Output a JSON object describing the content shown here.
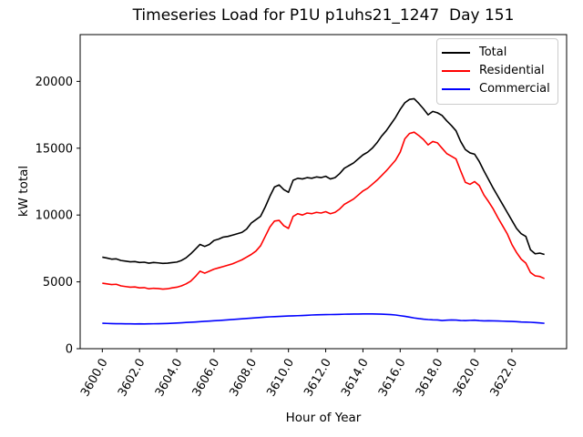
{
  "chart_data": {
    "type": "line",
    "title": "Timeseries Load for P1U p1uhs21_1247  Day 151",
    "xlabel": "Hour of Year",
    "ylabel": "kW total",
    "xlim": [
      3598.81,
      3624.94
    ],
    "ylim": [
      0,
      23500
    ],
    "grid": false,
    "legend_position": "upper right",
    "xtick_values": [
      3600,
      3602,
      3604,
      3606,
      3608,
      3610,
      3612,
      3614,
      3616,
      3618,
      3620,
      3622
    ],
    "xtick_labels": [
      "3600.0",
      "3602.0",
      "3604.0",
      "3606.0",
      "3608.0",
      "3610.0",
      "3612.0",
      "3614.0",
      "3616.0",
      "3618.0",
      "3620.0",
      "3622.0"
    ],
    "ytick_values": [
      0,
      5000,
      10000,
      15000,
      20000
    ],
    "ytick_labels": [
      "0",
      "5000",
      "10000",
      "15000",
      "20000"
    ],
    "x": [
      3600.0,
      3600.25,
      3600.5,
      3600.75,
      3601.0,
      3601.25,
      3601.5,
      3601.75,
      3602.0,
      3602.25,
      3602.5,
      3602.75,
      3603.0,
      3603.25,
      3603.5,
      3603.75,
      3604.0,
      3604.25,
      3604.5,
      3604.75,
      3605.0,
      3605.25,
      3605.5,
      3605.75,
      3606.0,
      3606.25,
      3606.5,
      3606.75,
      3607.0,
      3607.25,
      3607.5,
      3607.75,
      3608.0,
      3608.25,
      3608.5,
      3608.75,
      3609.0,
      3609.25,
      3609.5,
      3609.75,
      3610.0,
      3610.25,
      3610.5,
      3610.75,
      3611.0,
      3611.25,
      3611.5,
      3611.75,
      3612.0,
      3612.25,
      3612.5,
      3612.75,
      3613.0,
      3613.25,
      3613.5,
      3613.75,
      3614.0,
      3614.25,
      3614.5,
      3614.75,
      3615.0,
      3615.25,
      3615.5,
      3615.75,
      3616.0,
      3616.25,
      3616.5,
      3616.75,
      3617.0,
      3617.25,
      3617.5,
      3617.75,
      3618.0,
      3618.25,
      3618.5,
      3618.75,
      3619.0,
      3619.25,
      3619.5,
      3619.75,
      3620.0,
      3620.25,
      3620.5,
      3620.75,
      3621.0,
      3621.25,
      3621.5,
      3621.75,
      3622.0,
      3622.25,
      3622.5,
      3622.75,
      3623.0,
      3623.25,
      3623.5,
      3623.75
    ],
    "series": [
      {
        "name": "Total",
        "color": "#000000",
        "values": [
          6850,
          6780,
          6700,
          6720,
          6600,
          6550,
          6500,
          6520,
          6450,
          6470,
          6400,
          6450,
          6420,
          6380,
          6400,
          6440,
          6480,
          6600,
          6800,
          7100,
          7450,
          7800,
          7650,
          7800,
          8100,
          8200,
          8350,
          8400,
          8500,
          8600,
          8700,
          8950,
          9400,
          9650,
          9900,
          10600,
          11400,
          12100,
          12250,
          11900,
          11700,
          12600,
          12750,
          12700,
          12800,
          12750,
          12850,
          12800,
          12900,
          12700,
          12800,
          13100,
          13500,
          13700,
          13900,
          14200,
          14500,
          14700,
          15000,
          15400,
          15900,
          16300,
          16800,
          17300,
          17900,
          18400,
          18650,
          18700,
          18350,
          17950,
          17500,
          17750,
          17650,
          17450,
          17050,
          16700,
          16300,
          15500,
          14900,
          14650,
          14550,
          14000,
          13300,
          12650,
          12000,
          11400,
          10800,
          10200,
          9600,
          9000,
          8600,
          8400,
          7400,
          7100,
          7150,
          7050
        ]
      },
      {
        "name": "Residential",
        "color": "#ff0000",
        "values": [
          4900,
          4850,
          4800,
          4820,
          4700,
          4650,
          4600,
          4620,
          4550,
          4570,
          4480,
          4520,
          4500,
          4460,
          4480,
          4550,
          4600,
          4700,
          4850,
          5050,
          5400,
          5800,
          5650,
          5800,
          5950,
          6050,
          6150,
          6250,
          6350,
          6500,
          6650,
          6850,
          7050,
          7300,
          7700,
          8400,
          9100,
          9550,
          9600,
          9200,
          9000,
          9900,
          10100,
          10000,
          10150,
          10100,
          10200,
          10150,
          10250,
          10100,
          10200,
          10450,
          10800,
          11000,
          11200,
          11500,
          11800,
          12000,
          12300,
          12600,
          12950,
          13300,
          13700,
          14100,
          14700,
          15700,
          16100,
          16200,
          15950,
          15650,
          15250,
          15500,
          15400,
          15000,
          14600,
          14400,
          14200,
          13300,
          12450,
          12300,
          12500,
          12200,
          11500,
          11000,
          10450,
          9800,
          9200,
          8600,
          7800,
          7200,
          6700,
          6400,
          5700,
          5450,
          5400,
          5250
        ]
      },
      {
        "name": "Commercial",
        "color": "#0000ff",
        "values": [
          1900,
          1890,
          1880,
          1870,
          1870,
          1860,
          1860,
          1855,
          1860,
          1855,
          1860,
          1865,
          1870,
          1875,
          1885,
          1900,
          1920,
          1940,
          1960,
          1980,
          2000,
          2020,
          2045,
          2065,
          2090,
          2110,
          2135,
          2160,
          2185,
          2210,
          2235,
          2260,
          2285,
          2310,
          2340,
          2360,
          2385,
          2400,
          2415,
          2430,
          2445,
          2460,
          2470,
          2485,
          2500,
          2520,
          2535,
          2545,
          2550,
          2555,
          2560,
          2570,
          2580,
          2585,
          2590,
          2595,
          2600,
          2600,
          2600,
          2595,
          2585,
          2570,
          2550,
          2520,
          2470,
          2420,
          2360,
          2300,
          2250,
          2210,
          2180,
          2160,
          2150,
          2110,
          2130,
          2150,
          2140,
          2110,
          2100,
          2120,
          2130,
          2100,
          2080,
          2090,
          2085,
          2070,
          2060,
          2050,
          2040,
          2020,
          2000,
          1990,
          1975,
          1955,
          1930,
          1900
        ]
      }
    ]
  }
}
